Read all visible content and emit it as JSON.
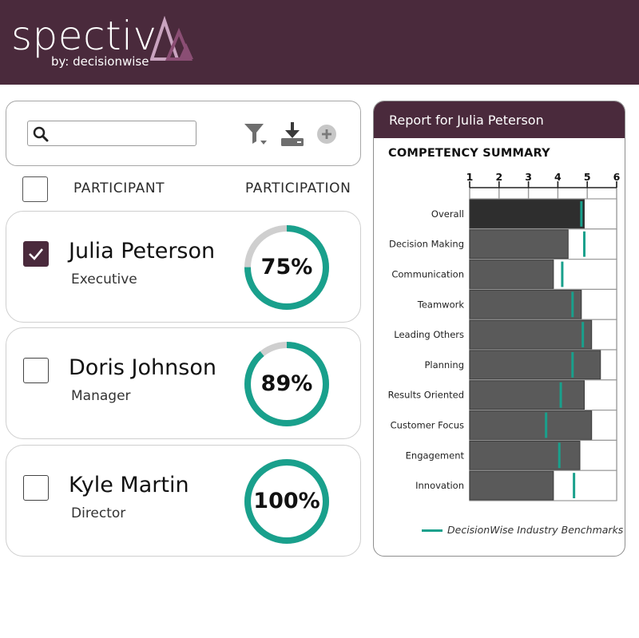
{
  "brand": {
    "name": "spectiv",
    "byline": "by: decisionwise",
    "primary_color": "#4a2a3c",
    "logo_light": "#c9a3bf",
    "logo_dark": "#8a4e74"
  },
  "toolbar": {
    "search_placeholder": "",
    "search_value": "",
    "icons": [
      "search-icon",
      "filter-icon",
      "download-icon",
      "add-icon"
    ]
  },
  "list": {
    "participant_header": "PARTICIPANT",
    "participation_header": "PARTICIPATION",
    "accent_color": "#19a08c",
    "track_color": "#cfcfcf",
    "participants": [
      {
        "name": "Julia Peterson",
        "role": "Executive",
        "participation": 0.75,
        "label": "75%",
        "checked": true
      },
      {
        "name": "Doris Johnson",
        "role": "Manager",
        "participation": 0.89,
        "label": "89%",
        "checked": false
      },
      {
        "name": "Kyle Martin",
        "role": "Director",
        "participation": 1.0,
        "label": "100%",
        "checked": false
      }
    ]
  },
  "report": {
    "title": "Report for Julia Peterson",
    "section_title": "COMPETENCY SUMMARY",
    "legend_label": "DecisionWise Industry Benchmarks"
  },
  "chart_data": {
    "type": "bar",
    "orientation": "horizontal",
    "title": "COMPETENCY SUMMARY",
    "categories": [
      "Overall",
      "Decision Making",
      "Communication",
      "Teamwork",
      "Leading Others",
      "Planning",
      "Results Oriented",
      "Customer Focus",
      "Engagement",
      "Innovation"
    ],
    "x_ticks": [
      1,
      2,
      3,
      4,
      5,
      6
    ],
    "xlim": [
      1,
      6
    ],
    "series": [
      {
        "values": [
          4.9,
          4.35,
          3.85,
          4.8,
          5.15,
          5.45,
          4.9,
          5.15,
          4.75,
          3.85
        ]
      },
      {
        "name": "DecisionWise Industry Benchmarks",
        "values": [
          4.8,
          4.9,
          4.15,
          4.5,
          4.85,
          4.5,
          4.1,
          3.6,
          4.05,
          4.55
        ]
      }
    ],
    "colors": {
      "bar": "#5a5a5a",
      "bar_overall": "#2e2e2e",
      "benchmark": "#19a08c"
    },
    "legend": "bottom-right",
    "grid": true
  }
}
